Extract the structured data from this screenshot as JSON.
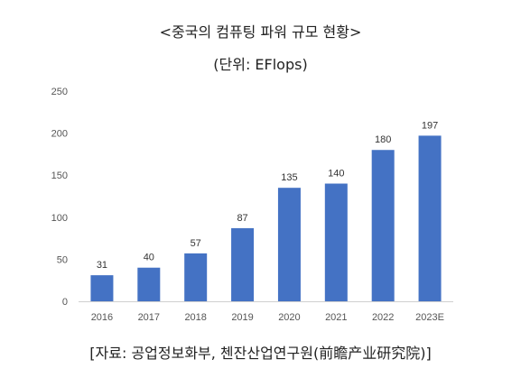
{
  "chart_data": {
    "type": "bar",
    "title": "<중국의 컴퓨팅 파워 규모 현황>",
    "subtitle": "(단위: EFlops)",
    "categories": [
      "2016",
      "2017",
      "2018",
      "2019",
      "2020",
      "2021",
      "2022",
      "2023E"
    ],
    "values": [
      31,
      40,
      57,
      87,
      135,
      140,
      180,
      197
    ],
    "data_labels": [
      "31",
      "40",
      "57",
      "87",
      "135",
      "140",
      "180",
      "197"
    ],
    "ylim": [
      0,
      250
    ],
    "yticks": [
      0,
      50,
      100,
      150,
      200,
      250
    ],
    "ytick_labels": [
      "0",
      "50",
      "100",
      "150",
      "200",
      "250"
    ],
    "grid": false,
    "legend": "none",
    "bar_color": "#4472C4"
  },
  "source": "[자료: 공업정보화부, 첸잔산업연구원(前瞻产业研究院)]"
}
